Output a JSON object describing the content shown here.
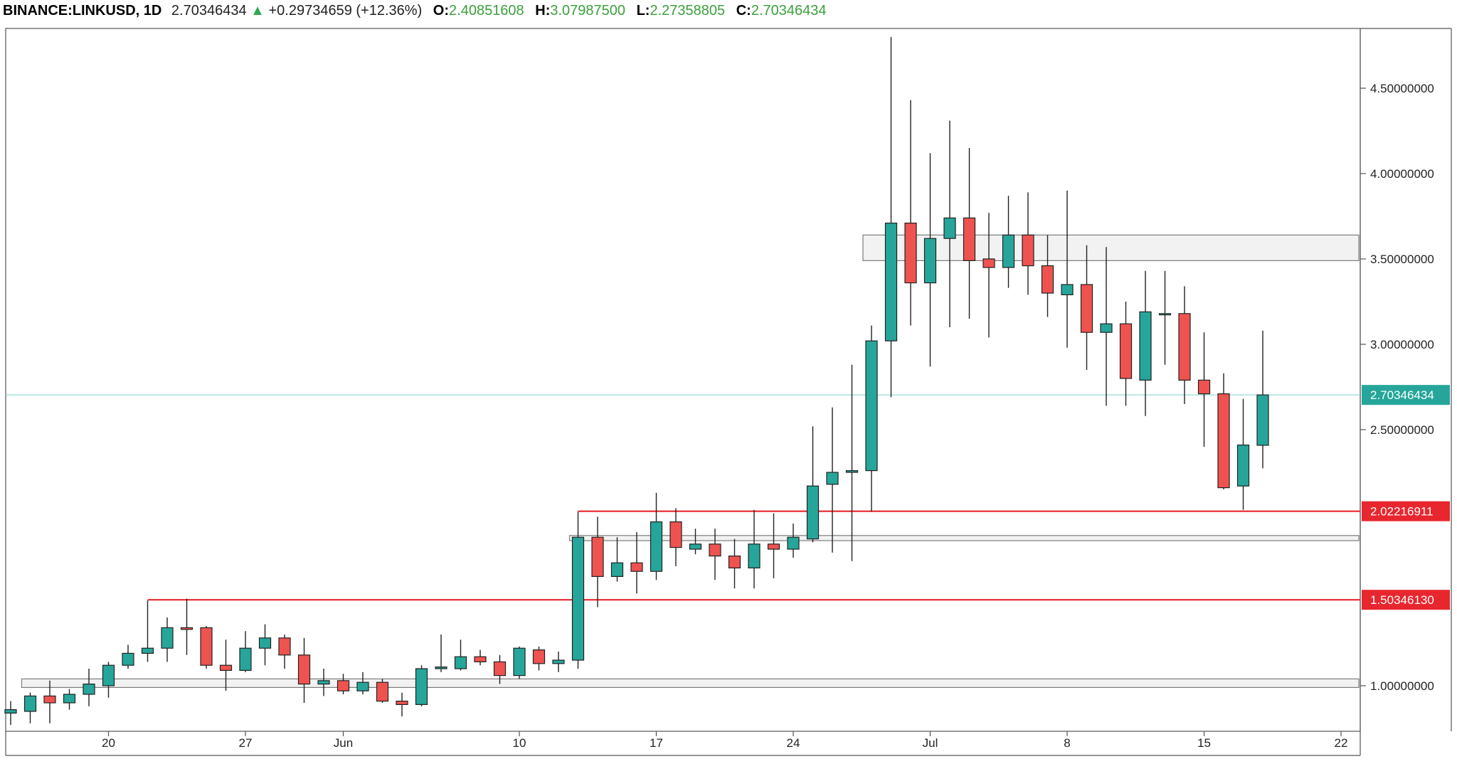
{
  "header": {
    "symbol": "BINANCE:LINKUSD, 1D",
    "last": "2.70346434",
    "change": "+0.29734659 (+12.36%)",
    "o_label": "O:",
    "o_value": "2.40851608",
    "h_label": "H:",
    "h_value": "3.07987500",
    "l_label": "L:",
    "l_value": "2.27358805",
    "c_label": "C:",
    "c_value": "2.70346434",
    "arrow_icon": "up-triangle-icon"
  },
  "colors": {
    "up": "#26a69a",
    "down": "#ef5350",
    "level_line": "#e8262e",
    "last_price": "#26a69a",
    "header_value": "#3c9f3c"
  },
  "chart_data": {
    "type": "candlestick",
    "symbol": "BINANCE:LINKUSD",
    "interval": "1D",
    "ylim": [
      0.8,
      4.8
    ],
    "y_ticks": [
      {
        "value": 4.5,
        "label": "4.50000000"
      },
      {
        "value": 4.0,
        "label": "4.00000000"
      },
      {
        "value": 3.5,
        "label": "3.50000000"
      },
      {
        "value": 3.0,
        "label": "3.00000000"
      },
      {
        "value": 2.5,
        "label": "2.50000000"
      },
      {
        "value": 1.0,
        "label": "1.00000000"
      }
    ],
    "x_ticks": [
      {
        "index": 5,
        "label": "20"
      },
      {
        "index": 12,
        "label": "27"
      },
      {
        "index": 17,
        "label": "Jun"
      },
      {
        "index": 26,
        "label": "10"
      },
      {
        "index": 33,
        "label": "17"
      },
      {
        "index": 40,
        "label": "24"
      },
      {
        "index": 47,
        "label": "Jul"
      },
      {
        "index": 54,
        "label": "8"
      },
      {
        "index": 61,
        "label": "15"
      },
      {
        "index": 68,
        "label": "22"
      }
    ],
    "candles": [
      {
        "date": "May 15",
        "o": 0.84,
        "h": 0.91,
        "l": 0.77,
        "c": 0.86
      },
      {
        "date": "May 16",
        "o": 0.85,
        "h": 0.96,
        "l": 0.78,
        "c": 0.94
      },
      {
        "date": "May 17",
        "o": 0.94,
        "h": 1.03,
        "l": 0.78,
        "c": 0.9
      },
      {
        "date": "May 18",
        "o": 0.9,
        "h": 0.98,
        "l": 0.86,
        "c": 0.95
      },
      {
        "date": "May 19",
        "o": 0.95,
        "h": 1.1,
        "l": 0.88,
        "c": 1.01
      },
      {
        "date": "May 20",
        "o": 1.0,
        "h": 1.14,
        "l": 0.93,
        "c": 1.12
      },
      {
        "date": "May 21",
        "o": 1.12,
        "h": 1.24,
        "l": 1.1,
        "c": 1.19
      },
      {
        "date": "May 22",
        "o": 1.19,
        "h": 1.5,
        "l": 1.14,
        "c": 1.22
      },
      {
        "date": "May 23",
        "o": 1.22,
        "h": 1.4,
        "l": 1.14,
        "c": 1.34
      },
      {
        "date": "May 24",
        "o": 1.34,
        "h": 1.51,
        "l": 1.18,
        "c": 1.33
      },
      {
        "date": "May 25",
        "o": 1.34,
        "h": 1.35,
        "l": 1.1,
        "c": 1.12
      },
      {
        "date": "May 26",
        "o": 1.12,
        "h": 1.27,
        "l": 0.97,
        "c": 1.09
      },
      {
        "date": "May 27",
        "o": 1.09,
        "h": 1.32,
        "l": 1.08,
        "c": 1.22
      },
      {
        "date": "May 28",
        "o": 1.22,
        "h": 1.36,
        "l": 1.12,
        "c": 1.28
      },
      {
        "date": "May 29",
        "o": 1.28,
        "h": 1.3,
        "l": 1.1,
        "c": 1.18
      },
      {
        "date": "May 30",
        "o": 1.18,
        "h": 1.28,
        "l": 0.9,
        "c": 1.01
      },
      {
        "date": "May 31",
        "o": 1.01,
        "h": 1.1,
        "l": 0.94,
        "c": 1.03
      },
      {
        "date": "Jun 1",
        "o": 1.03,
        "h": 1.07,
        "l": 0.95,
        "c": 0.97
      },
      {
        "date": "Jun 2",
        "o": 0.97,
        "h": 1.08,
        "l": 0.95,
        "c": 1.02
      },
      {
        "date": "Jun 3",
        "o": 1.02,
        "h": 1.04,
        "l": 0.9,
        "c": 0.91
      },
      {
        "date": "Jun 4",
        "o": 0.91,
        "h": 0.96,
        "l": 0.82,
        "c": 0.89
      },
      {
        "date": "Jun 5",
        "o": 0.89,
        "h": 1.12,
        "l": 0.88,
        "c": 1.1
      },
      {
        "date": "Jun 6",
        "o": 1.1,
        "h": 1.3,
        "l": 1.08,
        "c": 1.11
      },
      {
        "date": "Jun 7",
        "o": 1.1,
        "h": 1.27,
        "l": 1.09,
        "c": 1.17
      },
      {
        "date": "Jun 8",
        "o": 1.17,
        "h": 1.21,
        "l": 1.12,
        "c": 1.14
      },
      {
        "date": "Jun 9",
        "o": 1.14,
        "h": 1.18,
        "l": 1.01,
        "c": 1.06
      },
      {
        "date": "Jun 10",
        "o": 1.06,
        "h": 1.23,
        "l": 1.04,
        "c": 1.22
      },
      {
        "date": "Jun 11",
        "o": 1.21,
        "h": 1.23,
        "l": 1.09,
        "c": 1.13
      },
      {
        "date": "Jun 12",
        "o": 1.13,
        "h": 1.2,
        "l": 1.08,
        "c": 1.15
      },
      {
        "date": "Jun 13",
        "o": 1.15,
        "h": 2.02,
        "l": 1.1,
        "c": 1.87
      },
      {
        "date": "Jun 14",
        "o": 1.87,
        "h": 1.99,
        "l": 1.46,
        "c": 1.64
      },
      {
        "date": "Jun 15",
        "o": 1.64,
        "h": 1.87,
        "l": 1.61,
        "c": 1.72
      },
      {
        "date": "Jun 16",
        "o": 1.72,
        "h": 1.9,
        "l": 1.54,
        "c": 1.67
      },
      {
        "date": "Jun 17",
        "o": 1.67,
        "h": 2.13,
        "l": 1.62,
        "c": 1.96
      },
      {
        "date": "Jun 18",
        "o": 1.96,
        "h": 2.04,
        "l": 1.7,
        "c": 1.81
      },
      {
        "date": "Jun 19",
        "o": 1.8,
        "h": 1.92,
        "l": 1.77,
        "c": 1.83
      },
      {
        "date": "Jun 20",
        "o": 1.83,
        "h": 1.92,
        "l": 1.62,
        "c": 1.76
      },
      {
        "date": "Jun 21",
        "o": 1.76,
        "h": 1.86,
        "l": 1.57,
        "c": 1.69
      },
      {
        "date": "Jun 22",
        "o": 1.69,
        "h": 2.03,
        "l": 1.57,
        "c": 1.83
      },
      {
        "date": "Jun 23",
        "o": 1.83,
        "h": 2.01,
        "l": 1.63,
        "c": 1.8
      },
      {
        "date": "Jun 24",
        "o": 1.8,
        "h": 1.95,
        "l": 1.75,
        "c": 1.87
      },
      {
        "date": "Jun 25",
        "o": 1.86,
        "h": 2.52,
        "l": 1.84,
        "c": 2.17
      },
      {
        "date": "Jun 26",
        "o": 2.18,
        "h": 2.63,
        "l": 1.78,
        "c": 2.25
      },
      {
        "date": "Jun 27",
        "o": 2.25,
        "h": 2.88,
        "l": 1.73,
        "c": 2.26
      },
      {
        "date": "Jun 28",
        "o": 2.26,
        "h": 3.11,
        "l": 2.02,
        "c": 3.02
      },
      {
        "date": "Jun 29",
        "o": 3.02,
        "h": 4.8,
        "l": 2.69,
        "c": 3.71
      },
      {
        "date": "Jun 30",
        "o": 3.71,
        "h": 4.43,
        "l": 3.11,
        "c": 3.36
      },
      {
        "date": "Jul 1",
        "o": 3.36,
        "h": 4.12,
        "l": 2.87,
        "c": 3.62
      },
      {
        "date": "Jul 2",
        "o": 3.62,
        "h": 4.31,
        "l": 3.1,
        "c": 3.74
      },
      {
        "date": "Jul 3",
        "o": 3.74,
        "h": 4.15,
        "l": 3.15,
        "c": 3.49
      },
      {
        "date": "Jul 4",
        "o": 3.5,
        "h": 3.77,
        "l": 3.04,
        "c": 3.45
      },
      {
        "date": "Jul 5",
        "o": 3.45,
        "h": 3.87,
        "l": 3.33,
        "c": 3.64
      },
      {
        "date": "Jul 6",
        "o": 3.64,
        "h": 3.89,
        "l": 3.29,
        "c": 3.46
      },
      {
        "date": "Jul 7",
        "o": 3.46,
        "h": 3.64,
        "l": 3.16,
        "c": 3.3
      },
      {
        "date": "Jul 8",
        "o": 3.29,
        "h": 3.9,
        "l": 2.98,
        "c": 3.35
      },
      {
        "date": "Jul 9",
        "o": 3.35,
        "h": 3.58,
        "l": 2.85,
        "c": 3.07
      },
      {
        "date": "Jul 10",
        "o": 3.07,
        "h": 3.57,
        "l": 2.64,
        "c": 3.12
      },
      {
        "date": "Jul 11",
        "o": 3.12,
        "h": 3.25,
        "l": 2.64,
        "c": 2.8
      },
      {
        "date": "Jul 12",
        "o": 2.79,
        "h": 3.43,
        "l": 2.58,
        "c": 3.19
      },
      {
        "date": "Jul 13",
        "o": 3.18,
        "h": 3.43,
        "l": 2.88,
        "c": 3.18
      },
      {
        "date": "Jul 14",
        "o": 3.18,
        "h": 3.34,
        "l": 2.65,
        "c": 2.79
      },
      {
        "date": "Jul 15",
        "o": 2.79,
        "h": 3.07,
        "l": 2.4,
        "c": 2.71
      },
      {
        "date": "Jul 16",
        "o": 2.71,
        "h": 2.83,
        "l": 2.15,
        "c": 2.16
      },
      {
        "date": "Jul 17",
        "o": 2.17,
        "h": 2.68,
        "l": 2.03,
        "c": 2.41
      },
      {
        "date": "Jul 18",
        "o": 2.40851608,
        "h": 3.079875,
        "l": 2.27358805,
        "c": 2.70346434
      }
    ],
    "levels": [
      {
        "value": 2.02216911,
        "label": "2.02216911",
        "from_index": 29
      },
      {
        "value": 1.5034613,
        "label": "1.50346130",
        "from_index": 7
      }
    ],
    "zones": [
      {
        "low": 3.49,
        "high": 3.64,
        "from_index": 44
      },
      {
        "low": 1.85,
        "high": 1.88,
        "from_index": 29
      },
      {
        "low": 0.99,
        "high": 1.04,
        "from_index": 1
      }
    ],
    "last_price": {
      "value": 2.70346434,
      "label": "2.70346434"
    }
  }
}
